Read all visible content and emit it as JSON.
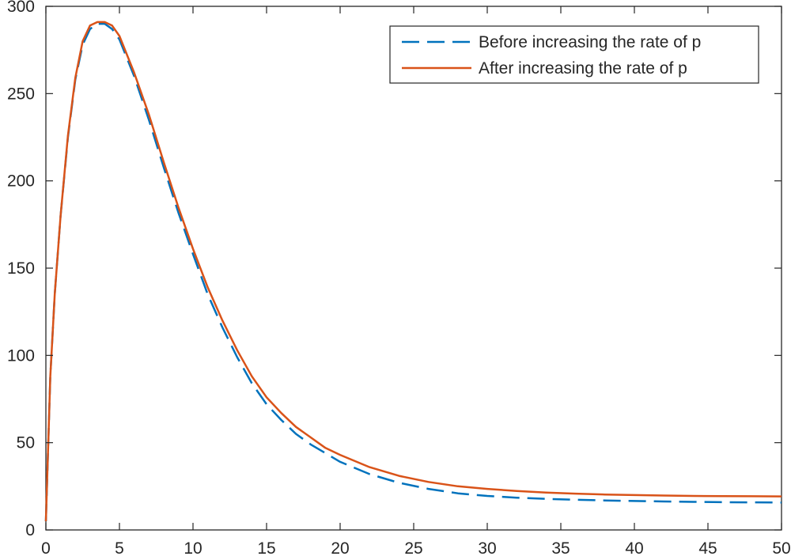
{
  "chart_data": {
    "type": "line",
    "title": "",
    "xlabel": "",
    "ylabel": "",
    "xlim": [
      0,
      50
    ],
    "ylim": [
      0,
      300
    ],
    "xticks": [
      0,
      5,
      10,
      15,
      20,
      25,
      30,
      35,
      40,
      45,
      50
    ],
    "yticks": [
      0,
      50,
      100,
      150,
      200,
      250,
      300
    ],
    "xtick_labels": [
      "0",
      "5",
      "10",
      "15",
      "20",
      "25",
      "30",
      "35",
      "40",
      "45",
      "50"
    ],
    "ytick_labels": [
      "0",
      "50",
      "100",
      "150",
      "200",
      "250",
      "300"
    ],
    "grid": false,
    "legend_position": "top-right",
    "series": [
      {
        "name": "Before increasing the rate of p",
        "color": "#0072BD",
        "style": "dashed",
        "x": [
          0,
          0.3,
          0.6,
          1,
          1.5,
          2,
          2.5,
          3,
          3.5,
          4,
          4.5,
          5,
          6,
          7,
          8,
          9,
          10,
          11,
          12,
          13,
          14,
          15,
          16,
          17,
          18,
          19,
          20,
          22,
          24,
          26,
          28,
          30,
          32,
          34,
          36,
          38,
          40,
          42,
          44,
          46,
          48,
          50
        ],
        "y": [
          5,
          88,
          135,
          180,
          225,
          258,
          278,
          287,
          290,
          290,
          287,
          281,
          260,
          235,
          208,
          182,
          158,
          135,
          116,
          99,
          84,
          72,
          63,
          55,
          49,
          44,
          39,
          32,
          27,
          23.5,
          21,
          19.5,
          18.5,
          17.8,
          17.3,
          16.9,
          16.6,
          16.3,
          16.1,
          15.9,
          15.8,
          15.7
        ]
      },
      {
        "name": "After increasing the rate of p",
        "color": "#D95319",
        "style": "solid",
        "x": [
          0,
          0.3,
          0.6,
          1,
          1.5,
          2,
          2.5,
          3,
          3.5,
          4,
          4.5,
          5,
          6,
          7,
          8,
          9,
          10,
          11,
          12,
          13,
          14,
          15,
          16,
          17,
          18,
          19,
          20,
          22,
          24,
          26,
          28,
          30,
          32,
          34,
          36,
          38,
          40,
          42,
          44,
          46,
          48,
          50
        ],
        "y": [
          5,
          88,
          135,
          180,
          226,
          259,
          280,
          289,
          291,
          291,
          289,
          283,
          262,
          238,
          211,
          185,
          161,
          139,
          120,
          103,
          88,
          76,
          67,
          59,
          53,
          47,
          43,
          36,
          31,
          27.5,
          25,
          23.5,
          22.3,
          21.4,
          20.8,
          20.3,
          20,
          19.7,
          19.5,
          19.4,
          19.3,
          19.2
        ]
      }
    ]
  }
}
